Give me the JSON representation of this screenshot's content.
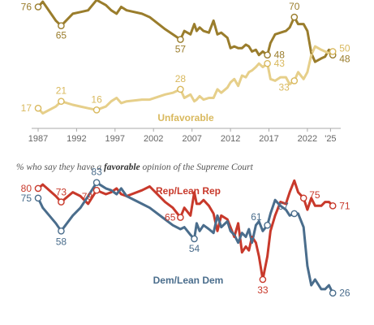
{
  "colors": {
    "favorable": "#9a7d2c",
    "unfavorable": "#e6cf8a",
    "unfavorable_label": "#d9b95e",
    "rep": "#c8392b",
    "dem": "#4a6d8c",
    "axis": "#aaaaaa",
    "tick_text": "#666666"
  },
  "chart_data": [
    {
      "type": "line",
      "title": "",
      "xlabel": "",
      "ylabel": "",
      "xlim": [
        1987,
        2025.7
      ],
      "ylim": [
        10,
        80
      ],
      "x_ticks": [
        "1987",
        "1992",
        "1997",
        "2002",
        "2007",
        "2012",
        "2017",
        "2022",
        "'25"
      ],
      "x_tick_values": [
        1987,
        1992,
        1997,
        2002,
        2007,
        2012,
        2017,
        2022,
        2025
      ],
      "series": [
        {
          "name": "",
          "key": "favorable",
          "points": [
            [
              1987,
              76
            ],
            [
              1987.6,
              79
            ],
            [
              1989.3,
              68
            ],
            [
              1990,
              65
            ],
            [
              1991.5,
              72
            ],
            [
              1992.5,
              73
            ],
            [
              1993.5,
              74
            ],
            [
              1994.6,
              80
            ],
            [
              1995.8,
              77
            ],
            [
              1996.5,
              74
            ],
            [
              1997.2,
              72
            ],
            [
              1997.8,
              76
            ],
            [
              1998.5,
              74
            ],
            [
              2000.5,
              72
            ],
            [
              2001.5,
              70
            ],
            [
              2003.5,
              63
            ],
            [
              2004.5,
              60
            ],
            [
              2005.5,
              57
            ],
            [
              2006,
              62
            ],
            [
              2006.8,
              60
            ],
            [
              2007.3,
              66
            ],
            [
              2007.6,
              62
            ],
            [
              2008,
              64
            ],
            [
              2008.5,
              62
            ],
            [
              2009.2,
              61
            ],
            [
              2009.8,
              68
            ],
            [
              2010.3,
              60
            ],
            [
              2010.8,
              61
            ],
            [
              2011.6,
              58
            ],
            [
              2012,
              52
            ],
            [
              2012.5,
              53
            ],
            [
              2013,
              52
            ],
            [
              2013.5,
              52
            ],
            [
              2014,
              54
            ],
            [
              2014.4,
              53
            ],
            [
              2014.8,
              50
            ],
            [
              2015.3,
              51
            ],
            [
              2015.7,
              48
            ],
            [
              2016.2,
              50
            ],
            [
              2016.8,
              48
            ],
            [
              2017.2,
              55
            ],
            [
              2017.8,
              60
            ],
            [
              2018.5,
              61
            ],
            [
              2019.2,
              62
            ],
            [
              2019.7,
              64
            ],
            [
              2020.3,
              70
            ],
            [
              2020.8,
              66
            ],
            [
              2021.5,
              66
            ],
            [
              2022,
              62
            ],
            [
              2022.5,
              49
            ],
            [
              2023,
              44
            ],
            [
              2023.8,
              46
            ],
            [
              2024.3,
              47
            ],
            [
              2024.8,
              51
            ],
            [
              2025.3,
              48
            ]
          ]
        },
        {
          "name": "Unfavorable",
          "key": "unfavorable",
          "points": [
            [
              1987,
              17
            ],
            [
              1987.6,
              14
            ],
            [
              1989.3,
              18
            ],
            [
              1990,
              21
            ],
            [
              1991.5,
              19
            ],
            [
              1992.5,
              18
            ],
            [
              1993.5,
              17
            ],
            [
              1994.6,
              16
            ],
            [
              1995.8,
              18
            ],
            [
              1996.5,
              21
            ],
            [
              1997.2,
              23
            ],
            [
              1997.8,
              20
            ],
            [
              1998.5,
              21
            ],
            [
              2000.5,
              22
            ],
            [
              2001.5,
              22
            ],
            [
              2003.5,
              25
            ],
            [
              2004.5,
              26
            ],
            [
              2005.5,
              28
            ],
            [
              2006,
              23
            ],
            [
              2006.8,
              25
            ],
            [
              2007.3,
              21
            ],
            [
              2007.6,
              22
            ],
            [
              2008,
              24
            ],
            [
              2008.5,
              22
            ],
            [
              2009.2,
              23
            ],
            [
              2009.8,
              23
            ],
            [
              2010.3,
              28
            ],
            [
              2010.8,
              26
            ],
            [
              2011.6,
              29
            ],
            [
              2012,
              32
            ],
            [
              2012.5,
              34
            ],
            [
              2013,
              30
            ],
            [
              2013.5,
              36
            ],
            [
              2014,
              35
            ],
            [
              2014.4,
              38
            ],
            [
              2014.8,
              39
            ],
            [
              2015.3,
              41
            ],
            [
              2015.7,
              43
            ],
            [
              2016.2,
              41
            ],
            [
              2016.8,
              43
            ],
            [
              2017.2,
              34
            ],
            [
              2017.8,
              33
            ],
            [
              2018.5,
              35
            ],
            [
              2019.2,
              35
            ],
            [
              2019.7,
              31
            ],
            [
              2020.3,
              33
            ],
            [
              2020.8,
              38
            ],
            [
              2021.5,
              34
            ],
            [
              2022,
              38
            ],
            [
              2022.5,
              48
            ],
            [
              2023,
              53
            ],
            [
              2023.8,
              51
            ],
            [
              2024.3,
              50
            ],
            [
              2024.8,
              49
            ],
            [
              2025.3,
              50
            ]
          ]
        }
      ],
      "point_labels": [
        {
          "series": "favorable",
          "x": 1987,
          "y": 76,
          "text": "76"
        },
        {
          "series": "favorable",
          "x": 1990,
          "y": 65,
          "text": "65"
        },
        {
          "series": "favorable",
          "x": 2005.5,
          "y": 57,
          "text": "57"
        },
        {
          "series": "favorable",
          "x": 2016.8,
          "y": 48,
          "text": "48"
        },
        {
          "series": "favorable",
          "x": 2020.3,
          "y": 70,
          "text": "70"
        },
        {
          "series": "favorable",
          "x": 2025.3,
          "y": 48,
          "text": "48"
        },
        {
          "series": "unfavorable",
          "x": 1987,
          "y": 17,
          "text": "17"
        },
        {
          "series": "unfavorable",
          "x": 1990,
          "y": 21,
          "text": "21"
        },
        {
          "series": "unfavorable",
          "x": 1994.6,
          "y": 16,
          "text": "16"
        },
        {
          "series": "unfavorable",
          "x": 2005.5,
          "y": 28,
          "text": "28"
        },
        {
          "series": "unfavorable",
          "x": 2016.8,
          "y": 43,
          "text": "43"
        },
        {
          "series": "unfavorable",
          "x": 2020.3,
          "y": 33,
          "text": "33"
        },
        {
          "series": "unfavorable",
          "x": 2025.3,
          "y": 50,
          "text": "50"
        }
      ]
    },
    {
      "type": "line",
      "title": "% who say they have a favorable opinion of the Supreme Court",
      "title_parts": [
        "% who say they have a ",
        "favorable",
        " opinion of the Supreme Court"
      ],
      "xlabel": "",
      "ylabel": "",
      "xlim": [
        1987,
        2025.7
      ],
      "ylim": [
        20,
        90
      ],
      "series": [
        {
          "name": "Rep/Lean Rep",
          "key": "rep",
          "points": [
            [
              1987,
              80
            ],
            [
              1987.6,
              82
            ],
            [
              1989.3,
              76
            ],
            [
              1990,
              73
            ],
            [
              1991.5,
              78
            ],
            [
              1992.5,
              76
            ],
            [
              1993.5,
              72
            ],
            [
              1994.6,
              79
            ],
            [
              1995.8,
              77
            ],
            [
              1996.5,
              78
            ],
            [
              1997.2,
              80
            ],
            [
              1997.8,
              77
            ],
            [
              1998.5,
              76
            ],
            [
              2000.5,
              79
            ],
            [
              2001.5,
              81
            ],
            [
              2003.5,
              73
            ],
            [
              2004.5,
              70
            ],
            [
              2005.5,
              65
            ],
            [
              2006,
              70
            ],
            [
              2006.8,
              66
            ],
            [
              2007.3,
              78
            ],
            [
              2007.6,
              72
            ],
            [
              2008,
              72
            ],
            [
              2008.5,
              74
            ],
            [
              2009.2,
              71
            ],
            [
              2009.8,
              67
            ],
            [
              2010.3,
              58
            ],
            [
              2010.8,
              66
            ],
            [
              2011.6,
              64
            ],
            [
              2012,
              60
            ],
            [
              2012.5,
              55
            ],
            [
              2013,
              62
            ],
            [
              2013.5,
              47
            ],
            [
              2014,
              50
            ],
            [
              2014.4,
              48
            ],
            [
              2014.8,
              55
            ],
            [
              2015.3,
              52
            ],
            [
              2015.7,
              45
            ],
            [
              2016.2,
              33
            ],
            [
              2016.8,
              45
            ],
            [
              2017.2,
              58
            ],
            [
              2017.8,
              66
            ],
            [
              2018.5,
              73
            ],
            [
              2019.2,
              72
            ],
            [
              2019.7,
              78
            ],
            [
              2020.3,
              84
            ],
            [
              2020.8,
              78
            ],
            [
              2021.5,
              75
            ],
            [
              2022,
              69
            ],
            [
              2022.5,
              75
            ],
            [
              2023,
              71
            ],
            [
              2023.8,
              71
            ],
            [
              2024.3,
              73
            ],
            [
              2024.8,
              73
            ],
            [
              2025.3,
              71
            ]
          ]
        },
        {
          "name": "Dem/Lean Dem",
          "key": "dem",
          "points": [
            [
              1987,
              75
            ],
            [
              1987.6,
              70
            ],
            [
              1989.3,
              62
            ],
            [
              1990,
              58
            ],
            [
              1991.5,
              66
            ],
            [
              1992.5,
              70
            ],
            [
              1993.5,
              76
            ],
            [
              1994.6,
              83
            ],
            [
              1995.8,
              80
            ],
            [
              1996.5,
              79
            ],
            [
              1997.2,
              77
            ],
            [
              1997.8,
              80
            ],
            [
              1998.5,
              76
            ],
            [
              2000.5,
              72
            ],
            [
              2001.5,
              70
            ],
            [
              2003.5,
              64
            ],
            [
              2004.5,
              61
            ],
            [
              2005.5,
              59
            ],
            [
              2006,
              60
            ],
            [
              2006.8,
              56
            ],
            [
              2007.3,
              54
            ],
            [
              2007.6,
              62
            ],
            [
              2008,
              58
            ],
            [
              2008.5,
              61
            ],
            [
              2009.2,
              59
            ],
            [
              2009.8,
              57
            ],
            [
              2010.3,
              66
            ],
            [
              2010.8,
              60
            ],
            [
              2011.6,
              63
            ],
            [
              2012,
              58
            ],
            [
              2012.5,
              56
            ],
            [
              2013,
              52
            ],
            [
              2013.5,
              57
            ],
            [
              2014,
              55
            ],
            [
              2014.4,
              59
            ],
            [
              2014.8,
              52
            ],
            [
              2015.3,
              61
            ],
            [
              2015.7,
              63
            ],
            [
              2016.2,
              58
            ],
            [
              2016.8,
              61
            ],
            [
              2017.2,
              67
            ],
            [
              2017.8,
              74
            ],
            [
              2018.5,
              71
            ],
            [
              2019.2,
              69
            ],
            [
              2019.7,
              66
            ],
            [
              2020.3,
              67
            ],
            [
              2020.8,
              67
            ],
            [
              2021.5,
              60
            ],
            [
              2022,
              40
            ],
            [
              2022.5,
              30
            ],
            [
              2023,
              33
            ],
            [
              2023.8,
              28
            ],
            [
              2024.3,
              28
            ],
            [
              2024.8,
              30
            ],
            [
              2025.3,
              26
            ]
          ]
        }
      ],
      "point_labels": [
        {
          "series": "rep",
          "x": 1987,
          "y": 80,
          "text": "80"
        },
        {
          "series": "rep",
          "x": 1990,
          "y": 73,
          "text": "73"
        },
        {
          "series": "rep",
          "x": 1994.6,
          "y": 79,
          "text": "79"
        },
        {
          "series": "rep",
          "x": 2005.5,
          "y": 65,
          "text": "65"
        },
        {
          "series": "rep",
          "x": 2016.2,
          "y": 33,
          "text": "33"
        },
        {
          "series": "rep",
          "x": 2021.5,
          "y": 75,
          "text": "75"
        },
        {
          "series": "rep",
          "x": 2025.3,
          "y": 71,
          "text": "71"
        },
        {
          "series": "dem",
          "x": 1987,
          "y": 75,
          "text": "75"
        },
        {
          "series": "dem",
          "x": 1990,
          "y": 58,
          "text": "58"
        },
        {
          "series": "dem",
          "x": 1994.6,
          "y": 83,
          "text": "83"
        },
        {
          "series": "dem",
          "x": 2007.3,
          "y": 54,
          "text": "54"
        },
        {
          "series": "dem",
          "x": 2016.8,
          "y": 61,
          "text": "61"
        },
        {
          "series": "dem",
          "x": 2020.3,
          "y": 67,
          "text": "67"
        },
        {
          "series": "dem",
          "x": 2025.3,
          "y": 26,
          "text": "26"
        }
      ]
    }
  ]
}
